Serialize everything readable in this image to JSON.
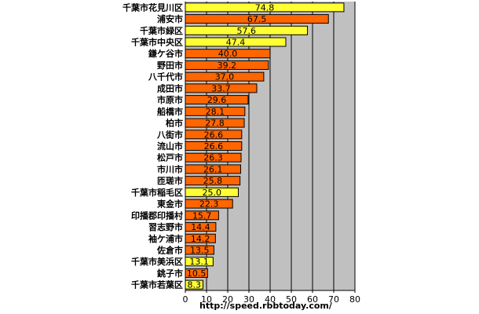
{
  "source_text": "http://speed.rbbtoday.com/",
  "chart_data": {
    "type": "bar",
    "orientation": "horizontal",
    "categories": [
      "千葉市花見川区",
      "浦安市",
      "千葉市緑区",
      "千葉市中央区",
      "鎌ケ谷市",
      "野田市",
      "八千代市",
      "成田市",
      "市原市",
      "船橋市",
      "柏市",
      "八街市",
      "流山市",
      "松戸市",
      "市川市",
      "匝瑳市",
      "千葉市稲毛区",
      "東金市",
      "印播郡印播村",
      "習志野市",
      "袖ケ浦市",
      "佐倉市",
      "千葉市美浜区",
      "銚子市",
      "千葉市若葉区"
    ],
    "values": [
      74.8,
      67.5,
      57.6,
      47.4,
      40.0,
      39.2,
      37.0,
      33.7,
      29.6,
      28.1,
      27.8,
      26.6,
      26.6,
      26.3,
      26.1,
      25.8,
      25.0,
      22.3,
      15.7,
      14.4,
      14.2,
      13.5,
      13.1,
      10.5,
      8.3
    ],
    "value_labels": [
      "74.8",
      "67.5",
      "57.6",
      "47.4",
      "40.0",
      "39.2",
      "37.0",
      "33.7",
      "29.6",
      "28.1",
      "27.8",
      "26.6",
      "26.6",
      "26.3",
      "26.1",
      "25.8",
      "25.0",
      "22.3",
      "15.7",
      "14.4",
      "14.2",
      "13.5",
      "13.1",
      "10.5",
      "8.3"
    ],
    "highlight": [
      true,
      false,
      true,
      true,
      false,
      false,
      false,
      false,
      false,
      false,
      false,
      false,
      false,
      false,
      false,
      false,
      true,
      false,
      false,
      false,
      false,
      false,
      true,
      false,
      true
    ],
    "xlim": [
      0,
      80
    ],
    "xticks": [
      0,
      10,
      20,
      30,
      40,
      50,
      60,
      70,
      80
    ],
    "grid": true,
    "colors": {
      "bar": "#ff6600",
      "highlight": "#ffff33",
      "plot_bg": "#c0c0c0",
      "edge": "#000000"
    }
  }
}
